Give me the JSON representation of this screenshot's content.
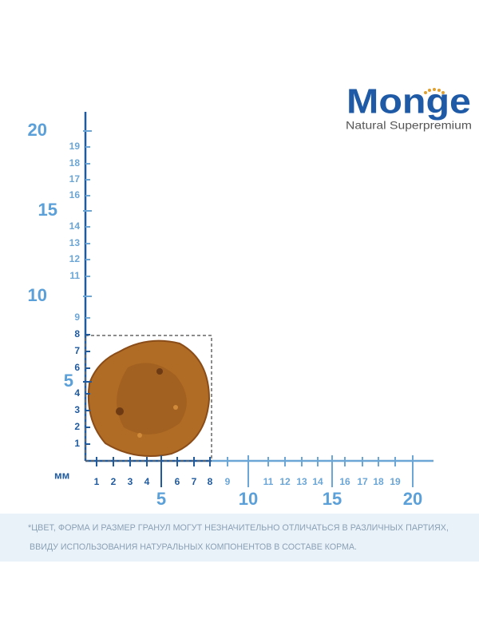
{
  "logo": {
    "brand": "Monge",
    "tagline": "Natural Superpremium"
  },
  "ruler": {
    "unit": "мм",
    "y_small": [
      "1",
      "2",
      "3",
      "4",
      "6",
      "7",
      "8",
      "9",
      "11",
      "12",
      "13",
      "14",
      "16",
      "17",
      "18",
      "19"
    ],
    "y_large": [
      "5",
      "10",
      "15",
      "20"
    ],
    "x_small": [
      "1",
      "2",
      "3",
      "4",
      "6",
      "7",
      "8",
      "9",
      "11",
      "12",
      "13",
      "14",
      "16",
      "17",
      "18",
      "19"
    ],
    "x_large": [
      "5",
      "10",
      "15",
      "20"
    ]
  },
  "disclaimer": [
    "*ЦВЕТ, ФОРМА И РАЗМЕР ГРАНУЛ МОГУТ НЕЗНАЧИТЕЛЬНО ОТЛИЧАТЬСЯ В РАЗЛИЧНЫХ ПАРТИЯХ,",
    "ВВИДУ ИСПОЛЬЗОВАНИЯ НАТУРАЛЬНЫХ КОМПОНЕНТОВ В СОСТАВЕ КОРМА."
  ]
}
